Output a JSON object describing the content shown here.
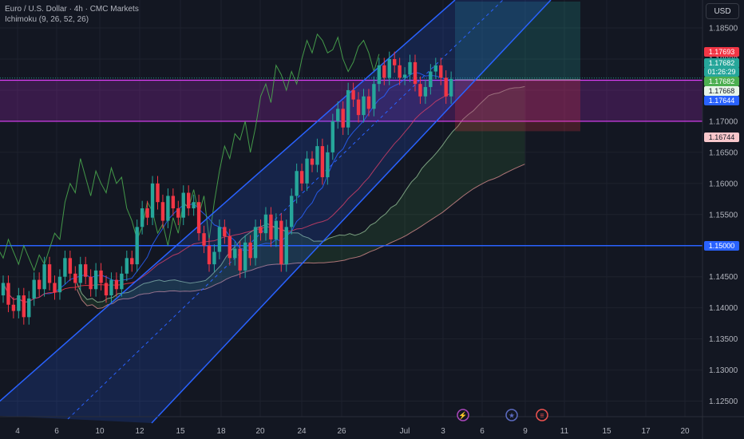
{
  "header": {
    "title": "Euro / U.S. Dollar · 4h · CMC Markets",
    "indicator": "Ichimoku (9, 26, 52, 26)"
  },
  "axis": {
    "currency_button": "USD"
  },
  "price_tags": [
    {
      "label": "1.17693",
      "bg": "#f23645",
      "fg": "#ffffff",
      "price": 1.17693
    },
    {
      "label": "1.17682",
      "bg": "#26a69a",
      "fg": "#ffffff",
      "price": 1.17682
    },
    {
      "label": "01:26:29",
      "bg": "#26a69a",
      "fg": "#ffffff",
      "price": 1.17682,
      "stack": 1
    },
    {
      "label": "1.17682",
      "bg": "#4caf50",
      "fg": "#ffffff",
      "price": 1.17682,
      "stack": 2
    },
    {
      "label": "1.17668",
      "bg": "#e8f5e9",
      "fg": "#131722",
      "price": 1.17668,
      "stack": 3
    },
    {
      "label": "1.17644",
      "bg": "#2962ff",
      "fg": "#ffffff",
      "price": 1.17644,
      "stack": 4
    },
    {
      "label": "1.16744",
      "bg": "#f8c7cb",
      "fg": "#131722",
      "price": 1.16744
    },
    {
      "label": "1.15000",
      "bg": "#2962ff",
      "fg": "#ffffff",
      "price": 1.15
    }
  ],
  "colors": {
    "up": "#26a69a",
    "down": "#f23645",
    "channel": "#2962ff",
    "zone": "#9c27b0",
    "target": "#26a69a",
    "stop": "#f23645",
    "lagging": "#4caf50",
    "base": "#f23645",
    "conversion": "#2962ff"
  },
  "event_icons": [
    "lightning-icon",
    "eu-flag-icon",
    "us-flag-icon"
  ],
  "chart_data": {
    "type": "candlestick",
    "symbol": "EURUSD",
    "interval": "4h",
    "ylim": [
      1.1225,
      1.1895
    ],
    "y_ticks": [
      "1.18500",
      "1.18000",
      "1.17500",
      "1.17000",
      "1.16500",
      "1.16000",
      "1.15500",
      "1.15000",
      "1.14500",
      "1.14000",
      "1.13500",
      "1.13000",
      "1.12500"
    ],
    "x_ticks": [
      "4",
      "6",
      "10",
      "12",
      "15",
      "18",
      "20",
      "24",
      "26",
      "Jul",
      "3",
      "6",
      "9",
      "11",
      "15",
      "17",
      "20"
    ],
    "candle_closes": [
      1.144,
      1.1405,
      1.1395,
      1.142,
      1.1385,
      1.1415,
      1.1445,
      1.143,
      1.147,
      1.144,
      1.1425,
      1.145,
      1.148,
      1.1455,
      1.144,
      1.147,
      1.145,
      1.143,
      1.146,
      1.144,
      1.142,
      1.1445,
      1.143,
      1.1455,
      1.148,
      1.147,
      1.153,
      1.156,
      1.1545,
      1.16,
      1.157,
      1.154,
      1.158,
      1.156,
      1.1545,
      1.1585,
      1.156,
      1.157,
      1.152,
      1.15,
      1.147,
      1.149,
      1.153,
      1.1515,
      1.148,
      1.1495,
      1.146,
      1.1505,
      1.148,
      1.153,
      1.152,
      1.155,
      1.151,
      1.154,
      1.147,
      1.153,
      1.158,
      1.162,
      1.16,
      1.164,
      1.163,
      1.166,
      1.161,
      1.165,
      1.17,
      1.172,
      1.169,
      1.175,
      1.1735,
      1.171,
      1.174,
      1.172,
      1.176,
      1.179,
      1.177,
      1.18,
      1.179,
      1.177,
      1.1775,
      1.1795,
      1.176,
      1.174,
      1.1755,
      1.178,
      1.179,
      1.177,
      1.174,
      1.1768
    ],
    "channel": {
      "upper_start": [
        0,
        1.136
      ],
      "upper_end": [
        91,
        1.1895
      ],
      "lower_start": [
        9,
        1.1225
      ],
      "lower_end": [
        91,
        1.177
      ]
    },
    "support_level": 1.15,
    "resistance_zone": [
      1.17,
      1.1766
    ],
    "take_profit": 1.1895,
    "entry": 1.17668,
    "stop_loss": 1.1684
  }
}
